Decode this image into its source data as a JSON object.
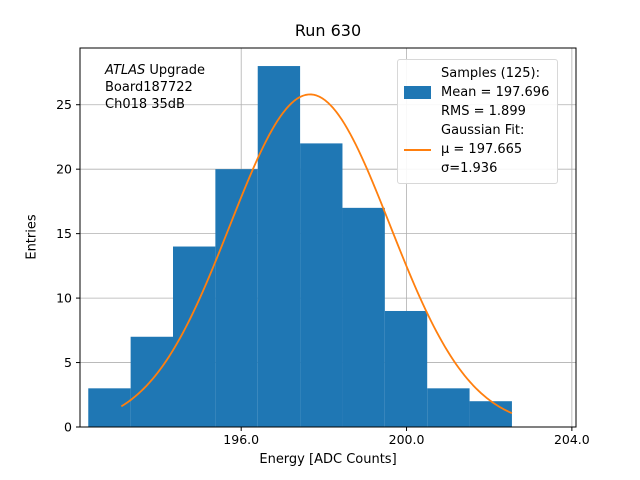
{
  "title": "Run 630",
  "annotation": {
    "line1_italic": "ATLAS",
    "line1_rest": " Upgrade",
    "line2": "Board187722",
    "line3": "Ch018 35dB"
  },
  "legend": {
    "samples_header": "Samples (125):",
    "mean": "Mean = 197.696",
    "rms": "RMS = 1.899",
    "fit_header": "Gaussian Fit:",
    "mu": "μ = 197.665",
    "sigma": "σ=1.936"
  },
  "chart_data": {
    "type": "bar",
    "subtype": "histogram-with-gaussian-fit",
    "title": "Run 630",
    "xlabel": "Energy [ADC Counts]",
    "ylabel": "Entries",
    "xlim": [
      192.1,
      204.1
    ],
    "ylim": [
      0,
      29.4
    ],
    "xticks": [
      196.0,
      200.0,
      204.0
    ],
    "xtick_labels": [
      "196.0",
      "200.0",
      "204.0"
    ],
    "yticks": [
      0,
      5,
      10,
      15,
      20,
      25
    ],
    "ytick_labels": [
      "0",
      "5",
      "10",
      "15",
      "20",
      "25"
    ],
    "bin_edges": [
      192.3,
      193.325,
      194.35,
      195.375,
      196.4,
      197.425,
      198.45,
      199.475,
      200.5,
      201.525,
      202.55
    ],
    "counts": [
      3,
      7,
      14,
      20,
      28,
      22,
      17,
      9,
      3,
      2
    ],
    "n_samples": 125,
    "mean": 197.696,
    "rms": 1.899,
    "fit": {
      "mu": 197.665,
      "sigma": 1.936,
      "amplitude": 25.8,
      "x_range": [
        193.1,
        202.55
      ]
    },
    "bar_color": "#1f77b4",
    "line_color": "#ff7f0e",
    "grid": true,
    "grid_color": "#b0b0b0",
    "legend_position": "upper right"
  }
}
